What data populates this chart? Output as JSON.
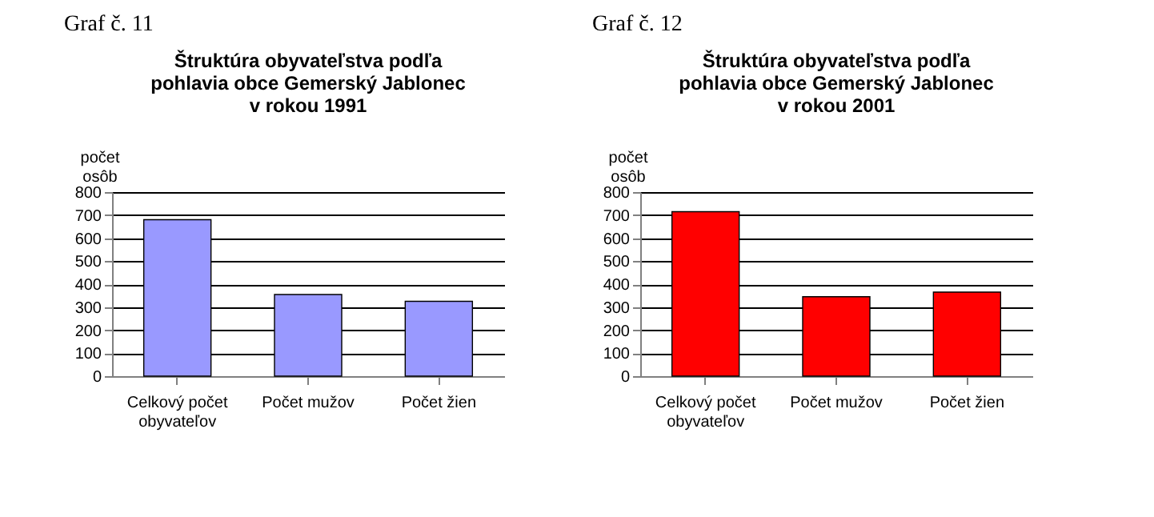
{
  "chart_data": [
    {
      "type": "bar",
      "annotations": [
        "Graf č. 11"
      ],
      "title": "Štruktúra obyvateľstva podľa\npohlavia obce Gemerský Jablonec\nv rokou 1991",
      "ylabel": "počet osôb",
      "categories": [
        "Celkový počet obyvateľov",
        "Počet mužov",
        "Počet žien"
      ],
      "values": [
        680,
        355,
        325
      ],
      "color": "#9999ff",
      "ylim": [
        0,
        800
      ],
      "yticks": [
        0,
        100,
        200,
        300,
        400,
        500,
        600,
        700,
        800
      ],
      "grid": "y"
    },
    {
      "type": "bar",
      "annotations": [
        "Graf č. 12"
      ],
      "title": "Štruktúra obyvateľstva podľa\npohlavia obce Gemerský Jablonec\nv rokou 2001",
      "ylabel": "počet osôb",
      "categories": [
        "Celkový počet obyvateľov",
        "Počet mužov",
        "Počet žien"
      ],
      "values": [
        715,
        345,
        365
      ],
      "color": "#ff0000",
      "ylim": [
        0,
        800
      ],
      "yticks": [
        0,
        100,
        200,
        300,
        400,
        500,
        600,
        700,
        800
      ],
      "grid": "y"
    }
  ]
}
